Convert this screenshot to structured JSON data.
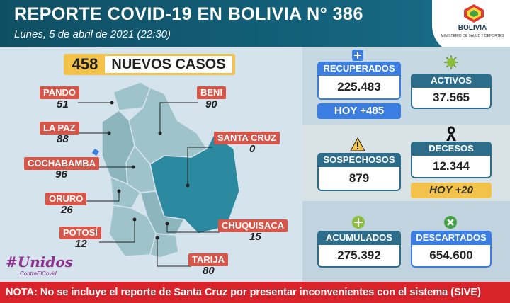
{
  "header": {
    "title": "REPORTE COVID-19 EN BOLIVIA N° 386",
    "subtitle": "Lunes, 5 de abril de 2021 (22:30)",
    "logo_text": "BOLIVIA",
    "logo_sub": "MINISTERIO DE SALUD Y DEPORTES"
  },
  "new_cases": {
    "number": "458",
    "label": "NUEVOS CASOS"
  },
  "departments": [
    {
      "name": "PANDO",
      "value": "51"
    },
    {
      "name": "LA PAZ",
      "value": "88"
    },
    {
      "name": "COCHABAMBA",
      "value": "96"
    },
    {
      "name": "ORURO",
      "value": "26"
    },
    {
      "name": "POTOSÍ",
      "value": "12"
    },
    {
      "name": "BENI",
      "value": "90"
    },
    {
      "name": "SANTA CRUZ",
      "value": "0"
    },
    {
      "name": "CHUQUISACA",
      "value": "15"
    },
    {
      "name": "TARIJA",
      "value": "80"
    }
  ],
  "stats": {
    "recuperados": {
      "label": "RECUPERADOS",
      "value": "225.483",
      "note": "HOY +485"
    },
    "activos": {
      "label": "ACTIVOS",
      "value": "37.565"
    },
    "sospechosos": {
      "label": "SOSPECHOSOS",
      "value": "879"
    },
    "decesos": {
      "label": "DECESOS",
      "value": "12.344",
      "note": "HOY +20"
    },
    "acumulados": {
      "label": "ACUMULADOS",
      "value": "275.392"
    },
    "descartados": {
      "label": "DESCARTADOS",
      "value": "654.600"
    }
  },
  "campaign": {
    "title": "#Unidos",
    "sub": "ContraElCovid"
  },
  "footer": {
    "text": "NOTA: No se incluye el reporte de Santa Cruz por presentar inconvenientes con el sistema (SIVE)"
  },
  "colors": {
    "header": "#13607a",
    "tag": "#d6574a",
    "highlight": "#3b7de0",
    "alert": "#d8232a",
    "yellow": "#f3c24a"
  }
}
